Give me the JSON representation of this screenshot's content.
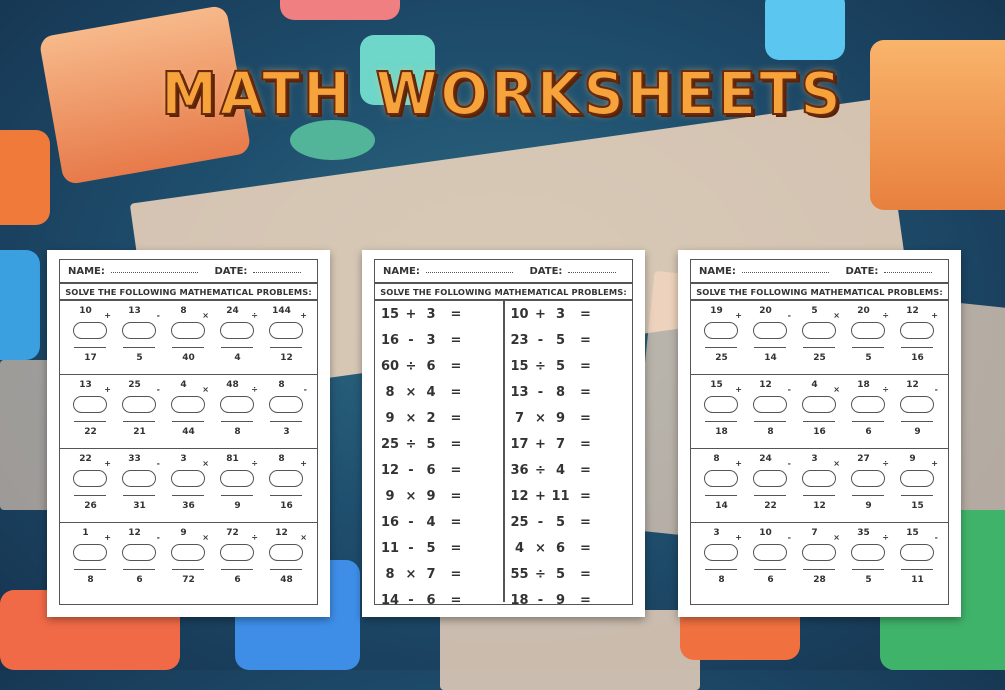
{
  "title": "MATH WORKSHEETS",
  "colors": {
    "title": "#f6a33c",
    "title_outline": "#6b2a0c",
    "background": "#1f4f6e"
  },
  "sheets": [
    {
      "name_label": "NAME:",
      "date_label": "DATE:",
      "instruction": "SOLVE THE FOLLOWING MATHEMATICAL PROBLEMS:",
      "type": "vertical",
      "blocks": [
        [
          {
            "top": "10",
            "op": "+",
            "bottom": "17"
          },
          {
            "top": "13",
            "op": "-",
            "bottom": "5"
          },
          {
            "top": "8",
            "op": "×",
            "bottom": "40"
          },
          {
            "top": "24",
            "op": "÷",
            "bottom": "4"
          },
          {
            "top": "144",
            "op": "+",
            "bottom": "12"
          }
        ],
        [
          {
            "top": "13",
            "op": "+",
            "bottom": "22"
          },
          {
            "top": "25",
            "op": "-",
            "bottom": "21"
          },
          {
            "top": "4",
            "op": "×",
            "bottom": "44"
          },
          {
            "top": "48",
            "op": "÷",
            "bottom": "8"
          },
          {
            "top": "8",
            "op": "-",
            "bottom": "3"
          }
        ],
        [
          {
            "top": "22",
            "op": "+",
            "bottom": "26"
          },
          {
            "top": "33",
            "op": "-",
            "bottom": "31"
          },
          {
            "top": "3",
            "op": "×",
            "bottom": "36"
          },
          {
            "top": "81",
            "op": "÷",
            "bottom": "9"
          },
          {
            "top": "8",
            "op": "+",
            "bottom": "16"
          }
        ],
        [
          {
            "top": "1",
            "op": "+",
            "bottom": "8"
          },
          {
            "top": "12",
            "op": "-",
            "bottom": "6"
          },
          {
            "top": "9",
            "op": "×",
            "bottom": "72"
          },
          {
            "top": "72",
            "op": "÷",
            "bottom": "6"
          },
          {
            "top": "12",
            "op": "×",
            "bottom": "48"
          }
        ]
      ]
    },
    {
      "name_label": "NAME:",
      "date_label": "DATE:",
      "instruction": "SOLVE THE FOLLOWING MATHEMATICAL PROBLEMS:",
      "type": "horizontal",
      "columns": [
        [
          [
            "15",
            "+",
            "3"
          ],
          [
            "16",
            "-",
            "3"
          ],
          [
            "60",
            "÷",
            "6"
          ],
          [
            "8",
            "×",
            "4"
          ],
          [
            "9",
            "×",
            "2"
          ],
          [
            "25",
            "÷",
            "5"
          ],
          [
            "12",
            "-",
            "6"
          ],
          [
            "9",
            "×",
            "9"
          ],
          [
            "16",
            "-",
            "4"
          ],
          [
            "11",
            "-",
            "5"
          ],
          [
            "8",
            "×",
            "7"
          ],
          [
            "14",
            "-",
            "6"
          ]
        ],
        [
          [
            "10",
            "+",
            "3"
          ],
          [
            "23",
            "-",
            "5"
          ],
          [
            "15",
            "÷",
            "5"
          ],
          [
            "13",
            "-",
            "8"
          ],
          [
            "7",
            "×",
            "9"
          ],
          [
            "17",
            "+",
            "7"
          ],
          [
            "36",
            "÷",
            "4"
          ],
          [
            "12",
            "+",
            "11"
          ],
          [
            "25",
            "-",
            "5"
          ],
          [
            "4",
            "×",
            "6"
          ],
          [
            "55",
            "÷",
            "5"
          ],
          [
            "18",
            "-",
            "9"
          ]
        ]
      ],
      "equals": "="
    },
    {
      "name_label": "NAME:",
      "date_label": "DATE:",
      "instruction": "SOLVE THE FOLLOWING MATHEMATICAL PROBLEMS:",
      "type": "vertical",
      "blocks": [
        [
          {
            "top": "19",
            "op": "+",
            "bottom": "25"
          },
          {
            "top": "20",
            "op": "-",
            "bottom": "14"
          },
          {
            "top": "5",
            "op": "×",
            "bottom": "25"
          },
          {
            "top": "20",
            "op": "÷",
            "bottom": "5"
          },
          {
            "top": "12",
            "op": "+",
            "bottom": "16"
          }
        ],
        [
          {
            "top": "15",
            "op": "+",
            "bottom": "18"
          },
          {
            "top": "12",
            "op": "-",
            "bottom": "8"
          },
          {
            "top": "4",
            "op": "×",
            "bottom": "16"
          },
          {
            "top": "18",
            "op": "÷",
            "bottom": "6"
          },
          {
            "top": "12",
            "op": "-",
            "bottom": "9"
          }
        ],
        [
          {
            "top": "8",
            "op": "+",
            "bottom": "14"
          },
          {
            "top": "24",
            "op": "-",
            "bottom": "22"
          },
          {
            "top": "3",
            "op": "×",
            "bottom": "12"
          },
          {
            "top": "27",
            "op": "÷",
            "bottom": "9"
          },
          {
            "top": "9",
            "op": "+",
            "bottom": "15"
          }
        ],
        [
          {
            "top": "3",
            "op": "+",
            "bottom": "8"
          },
          {
            "top": "10",
            "op": "-",
            "bottom": "6"
          },
          {
            "top": "7",
            "op": "×",
            "bottom": "28"
          },
          {
            "top": "35",
            "op": "÷",
            "bottom": "5"
          },
          {
            "top": "15",
            "op": "-",
            "bottom": "11"
          }
        ]
      ]
    }
  ]
}
